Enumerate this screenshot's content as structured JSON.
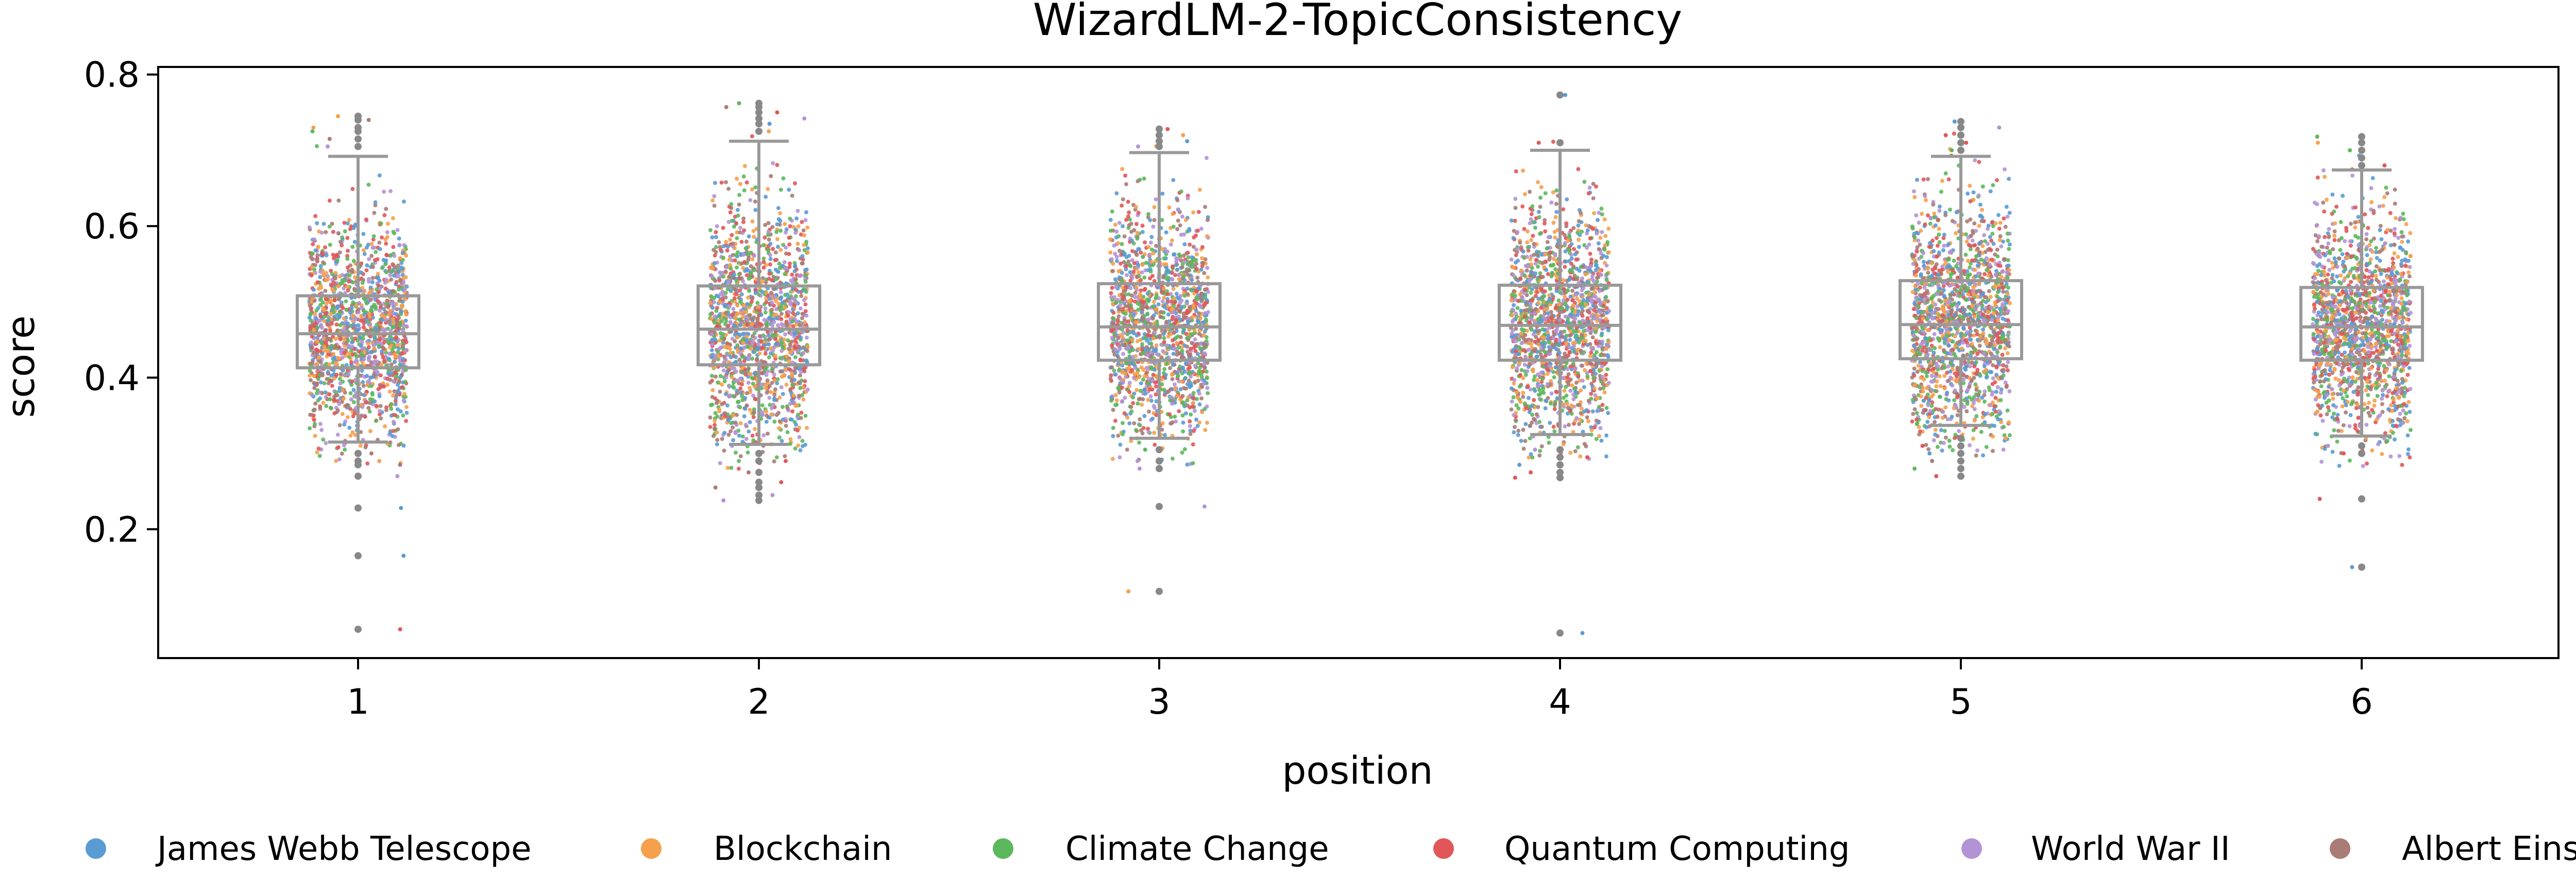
{
  "chart_data": {
    "type": "box+strip",
    "title": "WizardLM-2-TopicConsistency",
    "xlabel": "position",
    "ylabel": "score",
    "ylim": [
      0.03,
      0.81
    ],
    "yticks": [
      0.2,
      0.4,
      0.6,
      0.8
    ],
    "categories": [
      "1",
      "2",
      "3",
      "4",
      "5",
      "6"
    ],
    "legend_position": "bottom",
    "grid": false,
    "series": [
      {
        "name": "James Webb Telescope",
        "color": "#5a9bd4"
      },
      {
        "name": "Blockchain",
        "color": "#f6a04d"
      },
      {
        "name": "Climate Change",
        "color": "#5cb85c"
      },
      {
        "name": "Quantum Computing",
        "color": "#e15759"
      },
      {
        "name": "World War II",
        "color": "#b294d6"
      },
      {
        "name": "Albert Einstein",
        "color": "#a97c76"
      }
    ],
    "box_color": "#999999",
    "boxes": [
      {
        "q1": 0.413,
        "median": 0.458,
        "q3": 0.508,
        "whisker_low": 0.315,
        "whisker_high": 0.692,
        "outliers": [
          0.745,
          0.74,
          0.73,
          0.725,
          0.715,
          0.705,
          0.3,
          0.29,
          0.285,
          0.27,
          0.228,
          0.165,
          0.068
        ]
      },
      {
        "q1": 0.417,
        "median": 0.464,
        "q3": 0.521,
        "whisker_low": 0.312,
        "whisker_high": 0.712,
        "outliers": [
          0.762,
          0.757,
          0.75,
          0.742,
          0.735,
          0.725,
          0.3,
          0.29,
          0.275,
          0.262,
          0.255,
          0.245,
          0.238
        ]
      },
      {
        "q1": 0.423,
        "median": 0.467,
        "q3": 0.524,
        "whisker_low": 0.32,
        "whisker_high": 0.697,
        "outliers": [
          0.728,
          0.72,
          0.712,
          0.705,
          0.305,
          0.29,
          0.28,
          0.23,
          0.118
        ]
      },
      {
        "q1": 0.423,
        "median": 0.469,
        "q3": 0.522,
        "whisker_low": 0.325,
        "whisker_high": 0.7,
        "outliers": [
          0.773,
          0.71,
          0.305,
          0.295,
          0.285,
          0.275,
          0.268,
          0.063
        ]
      },
      {
        "q1": 0.425,
        "median": 0.47,
        "q3": 0.528,
        "whisker_low": 0.337,
        "whisker_high": 0.692,
        "outliers": [
          0.738,
          0.73,
          0.72,
          0.71,
          0.7,
          0.32,
          0.31,
          0.3,
          0.29,
          0.28,
          0.27
        ]
      },
      {
        "q1": 0.423,
        "median": 0.467,
        "q3": 0.519,
        "whisker_low": 0.323,
        "whisker_high": 0.674,
        "outliers": [
          0.718,
          0.71,
          0.7,
          0.69,
          0.68,
          0.31,
          0.3,
          0.24,
          0.15
        ]
      }
    ]
  }
}
